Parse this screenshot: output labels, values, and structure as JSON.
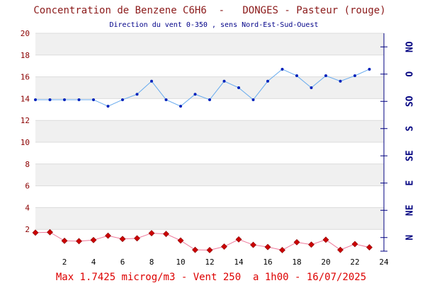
{
  "chart_data": {
    "type": "line",
    "title": "Concentration de Benzene C6H6  -   DONGES - Pasteur (rouge)",
    "subtitle": "Direction du vent 0-350 , sens Nord-Est-Sud-Ouest",
    "footer": "Max 1.7425 microg/m3 - Vent 250  a 1h00 - 16/07/2025",
    "x_ticks": [
      "2",
      "4",
      "6",
      "8",
      "10",
      "12",
      "14",
      "16",
      "18",
      "20",
      "22",
      "24"
    ],
    "xlim": [
      0,
      24
    ],
    "y_ticks": [
      "2",
      "4",
      "6",
      "8",
      "10",
      "12",
      "14",
      "16",
      "18",
      "20"
    ],
    "ylim": [
      0,
      20
    ],
    "right_axis_labels": [
      "N",
      "NE",
      "E",
      "SE",
      "S",
      "SO",
      "O",
      "NO"
    ],
    "band_fill": "#f0f0f0",
    "grid": true,
    "series": [
      {
        "axis": "right",
        "color": "#0022bb",
        "line_color": "#66aaee",
        "marker": "dot",
        "x": [
          0,
          1,
          2,
          3,
          4,
          5,
          6,
          7,
          8,
          9,
          10,
          11,
          12,
          13,
          14,
          15,
          16,
          17,
          18,
          19,
          20,
          21,
          22,
          23
        ],
        "values": [
          13.9,
          13.9,
          13.9,
          13.9,
          13.9,
          13.3,
          13.9,
          14.4,
          15.6,
          13.9,
          13.3,
          14.4,
          13.9,
          15.6,
          15.0,
          13.9,
          15.6,
          16.7,
          16.1,
          15.0,
          16.1,
          15.6,
          16.1,
          16.7
        ]
      },
      {
        "axis": "left",
        "color": "#cc0000",
        "line_color": "#ee7799",
        "marker": "diamond",
        "x": [
          0,
          1,
          2,
          3,
          4,
          5,
          6,
          7,
          8,
          9,
          10,
          11,
          12,
          13,
          14,
          15,
          16,
          17,
          18,
          19,
          20,
          21,
          22,
          23
        ],
        "values": [
          1.7,
          1.74,
          0.95,
          0.92,
          1.02,
          1.42,
          1.12,
          1.18,
          1.65,
          1.58,
          0.98,
          0.12,
          0.1,
          0.42,
          1.08,
          0.58,
          0.38,
          0.1,
          0.82,
          0.6,
          1.05,
          0.12,
          0.65,
          0.35
        ]
      }
    ]
  },
  "colors": {
    "title": "#8b1a1a",
    "subtitle": "#000088",
    "left_axis": "#8b0000",
    "x_axis": "#000000",
    "right_axis": "#000080",
    "footer": "#dd0000"
  }
}
